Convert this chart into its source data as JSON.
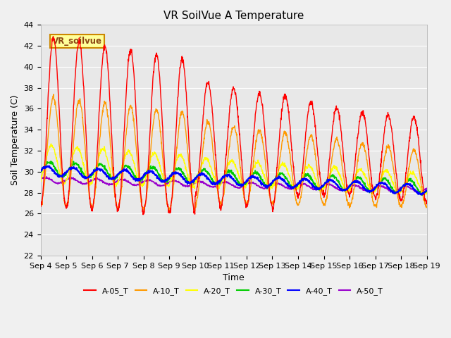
{
  "title": "VR SoilVue A Temperature",
  "xlabel": "Time",
  "ylabel": "Soil Temperature (C)",
  "ylim": [
    22,
    44
  ],
  "yticks": [
    22,
    24,
    26,
    28,
    30,
    32,
    34,
    36,
    38,
    40,
    42,
    44
  ],
  "xtick_labels": [
    "Sep 4",
    "Sep 5",
    "Sep 6",
    "Sep 7",
    "Sep 8",
    "Sep 9",
    "Sep 10",
    "Sep 11",
    "Sep 12",
    "Sep 13",
    "Sep 14",
    "Sep 15",
    "Sep 16",
    "Sep 17",
    "Sep 18",
    "Sep 19"
  ],
  "series_colors": {
    "A-05_T": "#ff0000",
    "A-10_T": "#ff9900",
    "A-20_T": "#ffff00",
    "A-30_T": "#00cc00",
    "A-40_T": "#0000ff",
    "A-50_T": "#9900cc"
  },
  "annotation_text": "VR_soilvue",
  "annotation_bg": "#ffff99",
  "annotation_border": "#cc8800",
  "fig_bg": "#f0f0f0",
  "plot_bg": "#e8e8e8",
  "grid_color": "#ffffff",
  "title_fontsize": 11,
  "label_fontsize": 9,
  "tick_fontsize": 8
}
